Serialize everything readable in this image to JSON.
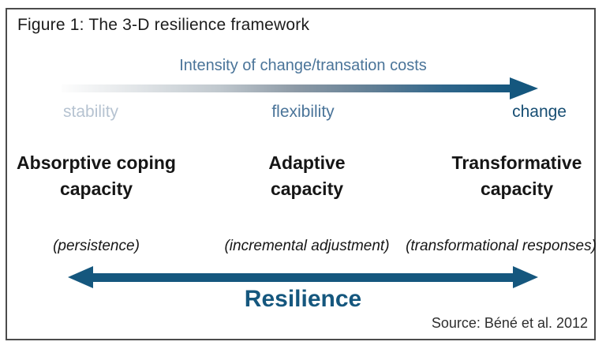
{
  "figure": {
    "title": "Figure 1: The 3-D resilience framework",
    "source": "Source: Béné et al. 2012"
  },
  "intensity_axis": {
    "label": "Intensity of change/transation costs",
    "direction": "left-to-right",
    "endpoints": [
      {
        "label": "stability",
        "color": "#b6c3d1"
      },
      {
        "label": "flexibility",
        "color": "#4a7499"
      },
      {
        "label": "change",
        "color": "#174e73"
      }
    ]
  },
  "capacities": [
    {
      "line1": "Absorptive coping",
      "line2": "capacity",
      "descriptor": "(persistence)"
    },
    {
      "line1": "Adaptive",
      "line2": "capacity",
      "descriptor": "(incremental adjustment)"
    },
    {
      "line1": "Transformative",
      "line2": "capacity",
      "descriptor": "(transformational responses)"
    }
  ],
  "resilience_axis": {
    "label": "Resilience",
    "direction": "double-headed"
  },
  "colors": {
    "dark_blue": "#15577e",
    "steel_blue": "#4a7499",
    "pale_blue_gray": "#b6c3d1",
    "ink": "#1c1c1c",
    "border_gray": "#4c4c4c"
  }
}
